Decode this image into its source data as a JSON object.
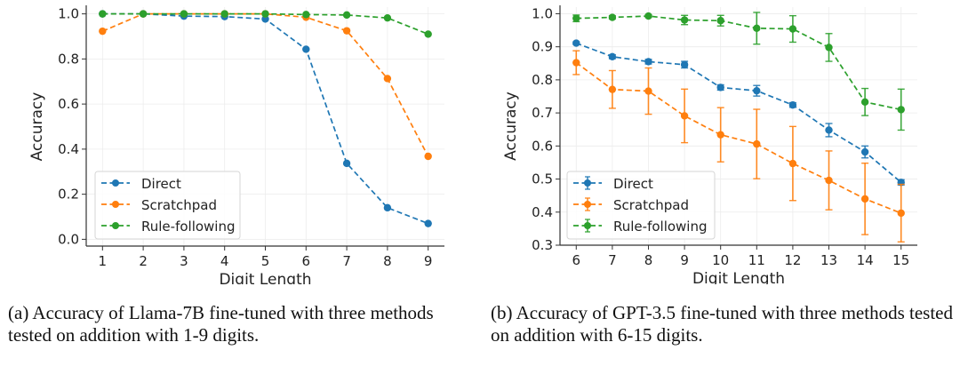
{
  "chart_data": [
    {
      "id": "a",
      "type": "line",
      "title": "",
      "xlabel": "Digit Length",
      "ylabel": "Accuracy",
      "x": [
        1,
        2,
        3,
        4,
        5,
        6,
        7,
        8,
        9
      ],
      "xticks": [
        "1",
        "2",
        "3",
        "4",
        "5",
        "6",
        "7",
        "8",
        "9"
      ],
      "yticks": [
        "0.0",
        "0.2",
        "0.4",
        "0.6",
        "0.8",
        "1.0"
      ],
      "ytick_values": [
        0.0,
        0.2,
        0.4,
        0.6,
        0.8,
        1.0
      ],
      "xlim": [
        0.6,
        9.4
      ],
      "ylim": [
        -0.03,
        1.03
      ],
      "grid": true,
      "error_bars": false,
      "legend_position": "lower-left",
      "series": [
        {
          "name": "Direct",
          "color": "#1f77b4",
          "values": [
            1.0,
            1.0,
            0.99,
            0.988,
            0.977,
            0.843,
            0.337,
            0.14,
            0.07
          ]
        },
        {
          "name": "Scratchpad",
          "color": "#ff7f0e",
          "values": [
            0.923,
            1.0,
            1.0,
            1.0,
            1.0,
            0.985,
            0.925,
            0.713,
            0.368
          ]
        },
        {
          "name": "Rule-following",
          "color": "#2ca02c",
          "values": [
            1.0,
            1.0,
            1.0,
            1.0,
            1.0,
            0.997,
            0.995,
            0.982,
            0.91
          ]
        }
      ]
    },
    {
      "id": "b",
      "type": "line",
      "title": "",
      "xlabel": "Digit Length",
      "ylabel": "Accuracy",
      "x": [
        6,
        7,
        8,
        9,
        10,
        11,
        12,
        13,
        14,
        15
      ],
      "xticks": [
        "6",
        "7",
        "8",
        "9",
        "10",
        "11",
        "12",
        "13",
        "14",
        "15"
      ],
      "yticks": [
        "0.3",
        "0.4",
        "0.5",
        "0.6",
        "0.7",
        "0.8",
        "0.9",
        "1.0"
      ],
      "ytick_values": [
        0.3,
        0.4,
        0.5,
        0.6,
        0.7,
        0.8,
        0.9,
        1.0
      ],
      "xlim": [
        5.55,
        15.45
      ],
      "ylim": [
        0.3,
        1.02
      ],
      "grid": true,
      "error_bars": true,
      "legend_position": "lower-left",
      "series": [
        {
          "name": "Direct",
          "color": "#1f77b4",
          "values": [
            0.911,
            0.87,
            0.855,
            0.846,
            0.777,
            0.767,
            0.724,
            0.648,
            0.582,
            0.49
          ],
          "errors": [
            0.004,
            0.006,
            0.007,
            0.01,
            0.008,
            0.016,
            0.007,
            0.02,
            0.018,
            0.008
          ]
        },
        {
          "name": "Scratchpad",
          "color": "#ff7f0e",
          "values": [
            0.852,
            0.771,
            0.766,
            0.691,
            0.634,
            0.606,
            0.547,
            0.496,
            0.44,
            0.397
          ],
          "errors": [
            0.036,
            0.057,
            0.07,
            0.081,
            0.082,
            0.105,
            0.112,
            0.089,
            0.108,
            0.087
          ]
        },
        {
          "name": "Rule-following",
          "color": "#2ca02c",
          "values": [
            0.986,
            0.989,
            0.993,
            0.981,
            0.979,
            0.956,
            0.954,
            0.898,
            0.733,
            0.71
          ],
          "errors": [
            0.01,
            0.005,
            0.004,
            0.014,
            0.016,
            0.048,
            0.04,
            0.042,
            0.041,
            0.062
          ]
        }
      ]
    }
  ],
  "captions": {
    "a": "(a) Accuracy of Llama-7B fine-tuned with three methods tested on addition with 1-9 digits.",
    "b": "(b) Accuracy of GPT-3.5 fine-tuned with three methods tested on addition with 6-15 digits."
  }
}
